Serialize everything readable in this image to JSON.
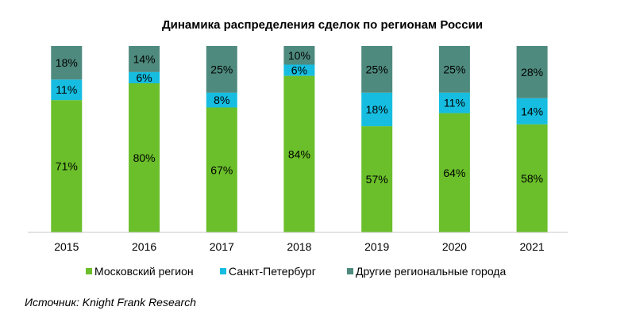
{
  "chart_data": {
    "type": "bar",
    "stacked": true,
    "normalized": true,
    "title": "Динамика распределения сделок по регионам России",
    "categories": [
      "2015",
      "2016",
      "2017",
      "2018",
      "2019",
      "2020",
      "2021"
    ],
    "series": [
      {
        "name": "Московский регион",
        "color": "#6abf2a",
        "values": [
          71,
          80,
          67,
          84,
          57,
          64,
          58
        ]
      },
      {
        "name": "Санкт-Петербург",
        "color": "#16bde0",
        "values": [
          11,
          6,
          8,
          6,
          18,
          11,
          14
        ]
      },
      {
        "name": "Другие региональные города",
        "color": "#4e8a7e",
        "values": [
          18,
          14,
          25,
          10,
          25,
          25,
          28
        ]
      }
    ],
    "value_suffix": "%",
    "ylim": [
      0,
      100
    ],
    "grid": false,
    "legend_position": "bottom"
  },
  "source_text": "Источник: Knight Frank Research"
}
